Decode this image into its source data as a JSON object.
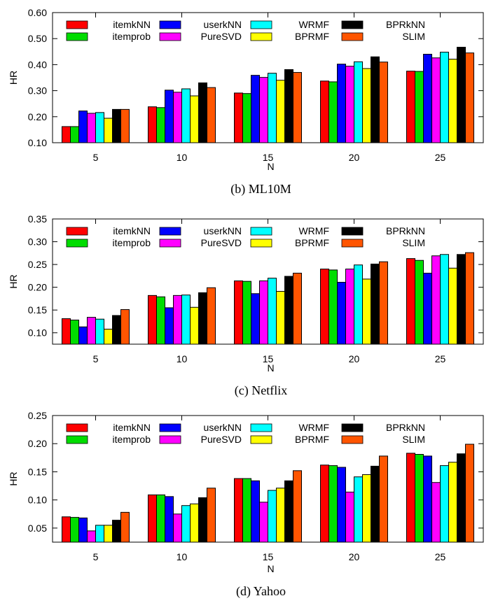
{
  "series_names": [
    "itemkNN",
    "itemprob",
    "userkNN",
    "PureSVD",
    "WRMF",
    "BPRMF",
    "BPRkNN",
    "SLIM"
  ],
  "series_colors": [
    "#ff0000",
    "#00dd00",
    "#0000ff",
    "#ff00ff",
    "#00ffff",
    "#ffff00",
    "#000000",
    "#ff5500"
  ],
  "chart_data": [
    {
      "type": "bar",
      "caption": "(b) ML10M",
      "xlabel": "N",
      "ylabel": "HR",
      "ylim": [
        0.1,
        0.6
      ],
      "yticks": [
        "0.10",
        "0.20",
        "0.30",
        "0.40",
        "0.50",
        "0.60"
      ],
      "ytick_values": [
        0.1,
        0.2,
        0.3,
        0.4,
        0.5,
        0.6
      ],
      "categories": [
        "5",
        "10",
        "15",
        "20",
        "25"
      ],
      "legend_position": "top",
      "series": [
        {
          "name": "itemkNN",
          "values": [
            0.162,
            0.238,
            0.291,
            0.337,
            0.375
          ]
        },
        {
          "name": "itemprob",
          "values": [
            0.162,
            0.235,
            0.289,
            0.334,
            0.374
          ]
        },
        {
          "name": "userkNN",
          "values": [
            0.222,
            0.302,
            0.359,
            0.402,
            0.44
          ]
        },
        {
          "name": "PureSVD",
          "values": [
            0.213,
            0.294,
            0.351,
            0.394,
            0.426
          ]
        },
        {
          "name": "WRMF",
          "values": [
            0.216,
            0.307,
            0.367,
            0.411,
            0.448
          ]
        },
        {
          "name": "BPRMF",
          "values": [
            0.194,
            0.28,
            0.34,
            0.385,
            0.421
          ]
        },
        {
          "name": "BPRkNN",
          "values": [
            0.228,
            0.33,
            0.381,
            0.43,
            0.467
          ]
        },
        {
          "name": "SLIM",
          "values": [
            0.228,
            0.312,
            0.37,
            0.41,
            0.445
          ]
        }
      ]
    },
    {
      "type": "bar",
      "caption": "(c) Netflix",
      "xlabel": "N",
      "ylabel": "HR",
      "ylim": [
        0.075,
        0.35
      ],
      "yticks": [
        "0.10",
        "0.15",
        "0.20",
        "0.25",
        "0.30",
        "0.35"
      ],
      "ytick_values": [
        0.1,
        0.15,
        0.2,
        0.25,
        0.3,
        0.35
      ],
      "categories": [
        "5",
        "10",
        "15",
        "20",
        "25"
      ],
      "legend_position": "top",
      "series": [
        {
          "name": "itemkNN",
          "values": [
            0.131,
            0.182,
            0.214,
            0.24,
            0.263
          ]
        },
        {
          "name": "itemprob",
          "values": [
            0.128,
            0.179,
            0.213,
            0.238,
            0.259
          ]
        },
        {
          "name": "userkNN",
          "values": [
            0.113,
            0.155,
            0.186,
            0.211,
            0.231
          ]
        },
        {
          "name": "PureSVD",
          "values": [
            0.134,
            0.182,
            0.214,
            0.24,
            0.269
          ]
        },
        {
          "name": "WRMF",
          "values": [
            0.13,
            0.183,
            0.22,
            0.249,
            0.272
          ]
        },
        {
          "name": "BPRMF",
          "values": [
            0.108,
            0.156,
            0.191,
            0.218,
            0.242
          ]
        },
        {
          "name": "BPRkNN",
          "values": [
            0.138,
            0.188,
            0.224,
            0.251,
            0.272
          ]
        },
        {
          "name": "SLIM",
          "values": [
            0.151,
            0.199,
            0.231,
            0.256,
            0.276
          ]
        }
      ]
    },
    {
      "type": "bar",
      "caption": "(d) Yahoo",
      "xlabel": "N",
      "ylabel": "HR",
      "ylim": [
        0.025,
        0.25
      ],
      "yticks": [
        "0.05",
        "0.10",
        "0.15",
        "0.20",
        "0.25"
      ],
      "ytick_values": [
        0.05,
        0.1,
        0.15,
        0.2,
        0.25
      ],
      "categories": [
        "5",
        "10",
        "15",
        "20",
        "25"
      ],
      "legend_position": "top",
      "series": [
        {
          "name": "itemkNN",
          "values": [
            0.07,
            0.109,
            0.138,
            0.162,
            0.183
          ]
        },
        {
          "name": "itemprob",
          "values": [
            0.069,
            0.109,
            0.138,
            0.161,
            0.181
          ]
        },
        {
          "name": "userkNN",
          "values": [
            0.068,
            0.106,
            0.134,
            0.158,
            0.178
          ]
        },
        {
          "name": "PureSVD",
          "values": [
            0.045,
            0.075,
            0.096,
            0.114,
            0.131
          ]
        },
        {
          "name": "WRMF",
          "values": [
            0.055,
            0.09,
            0.117,
            0.141,
            0.161
          ]
        },
        {
          "name": "BPRMF",
          "values": [
            0.055,
            0.093,
            0.121,
            0.145,
            0.167
          ]
        },
        {
          "name": "BPRkNN",
          "values": [
            0.064,
            0.104,
            0.134,
            0.16,
            0.182
          ]
        },
        {
          "name": "SLIM",
          "values": [
            0.078,
            0.121,
            0.152,
            0.178,
            0.199
          ]
        }
      ]
    }
  ]
}
